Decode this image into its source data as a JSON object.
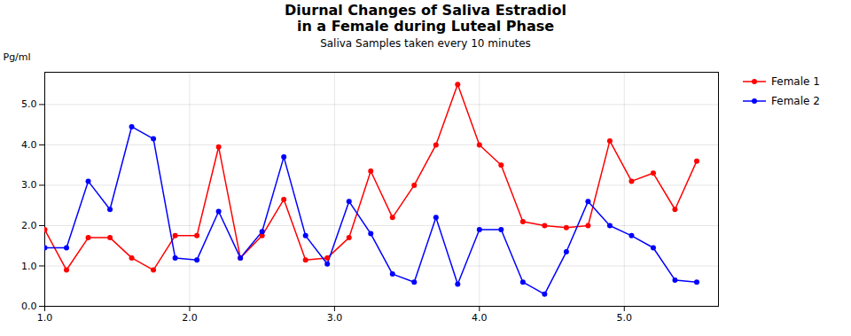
{
  "chart_data": {
    "type": "line",
    "title": "Diurnal Changes of Saliva Estradiol\nin a Female during Luteal Phase",
    "subtitle": "Saliva Samples taken every 10 minutes",
    "y_label": "Pg/ml",
    "x": [
      1.0,
      1.15,
      1.3,
      1.45,
      1.6,
      1.75,
      1.9,
      2.05,
      2.2,
      2.35,
      2.5,
      2.65,
      2.8,
      2.95,
      3.1,
      3.25,
      3.4,
      3.55,
      3.7,
      3.85,
      4.0,
      4.15,
      4.3,
      4.45,
      4.6,
      4.75,
      4.9,
      5.05,
      5.2,
      5.35,
      5.5
    ],
    "series": [
      {
        "name": "Female 1",
        "color": "#ff0000",
        "marker": "circle",
        "values": [
          1.9,
          0.9,
          1.7,
          1.7,
          1.2,
          0.9,
          1.75,
          1.75,
          3.95,
          1.2,
          1.75,
          2.65,
          1.15,
          1.2,
          1.7,
          3.35,
          2.2,
          3.0,
          4.0,
          5.5,
          4.0,
          3.5,
          2.1,
          2.0,
          1.95,
          2.0,
          4.1,
          3.1,
          3.3,
          2.4,
          3.6
        ]
      },
      {
        "name": "Female 2",
        "color": "#0000ff",
        "marker": "circle",
        "values": [
          1.45,
          1.45,
          3.1,
          2.4,
          4.45,
          4.15,
          1.2,
          1.15,
          2.35,
          1.2,
          1.85,
          3.7,
          1.75,
          1.05,
          2.6,
          1.8,
          0.8,
          0.6,
          2.2,
          0.55,
          1.9,
          1.9,
          0.6,
          0.3,
          1.35,
          2.6,
          2.0,
          1.75,
          1.45,
          0.65,
          0.6
        ]
      }
    ],
    "xlim": [
      1,
      5.65
    ],
    "ylim": [
      0,
      5.8
    ],
    "xticks": [
      1,
      2,
      3,
      4,
      5
    ],
    "yticks": [
      0,
      1,
      2,
      3,
      4,
      5
    ],
    "grid": true,
    "legend": "upper right"
  }
}
